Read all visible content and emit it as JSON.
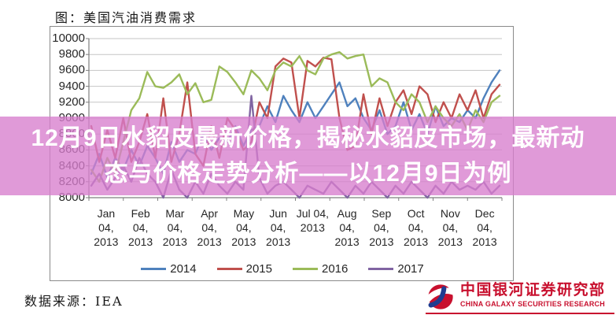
{
  "header": {
    "title": "图：美国汽油消费需求"
  },
  "overlay": {
    "line1": "12月9日水貂皮最新价格，揭秘水貂皮市场，最新动",
    "line2": "态与价格走势分析——以12月9日为例",
    "band_color": "rgba(215,125,205,0.78)",
    "text_color": "#ffffff"
  },
  "footer": {
    "source": "数据来源：IEA",
    "logo_cn": "中国银河证券研究部",
    "logo_en": "CHINA GALAXY SECURITIES RESEARCH",
    "logo_red": "#C8102E",
    "logo_blue": "#1F3C90"
  },
  "chart_data": {
    "type": "line",
    "title": "图：美国汽油消费需求",
    "xlabel": "",
    "ylabel": "",
    "ylim": [
      8000,
      10000
    ],
    "y_tick_step": 200,
    "y_ticks": [
      10000,
      9800,
      9600,
      9400,
      9200,
      9000,
      8800,
      8600,
      8400,
      8200,
      8000
    ],
    "grid": true,
    "legend_position": "bottom",
    "x_unit": "weekly",
    "x_tick_labels": [
      [
        "Jan",
        "04,",
        "2013"
      ],
      [
        "Feb",
        "04,",
        "2013"
      ],
      [
        "Mar",
        "04,",
        "2013"
      ],
      [
        "Apr",
        "04,",
        "2013"
      ],
      [
        "May",
        "04,",
        "2013"
      ],
      [
        "Jun",
        "04,",
        "2013"
      ],
      [
        "Jul 04,",
        "2013"
      ],
      [
        "Aug",
        "04,",
        "2013"
      ],
      [
        "Sep",
        "04,",
        "2013"
      ],
      [
        "Oct",
        "04,",
        "2013"
      ],
      [
        "Nov",
        "04,",
        "2013"
      ],
      [
        "Dec",
        "04,",
        "2013"
      ]
    ],
    "colors": {
      "grid": "#c6c6c6",
      "axis": "#7f7f7f"
    },
    "series": [
      {
        "name": "2014",
        "color": "#4F81BD",
        "values": [
          8300,
          8550,
          8250,
          8500,
          8350,
          8600,
          8400,
          8650,
          8500,
          8300,
          8700,
          8450,
          8600,
          8550,
          8800,
          8600,
          8750,
          8700,
          8900,
          8650,
          8850,
          8900,
          9150,
          8950,
          9280,
          9100,
          8950,
          9200,
          9000,
          9150,
          9300,
          9450,
          9150,
          9250,
          9000,
          8850,
          9100,
          8800,
          8900,
          9200,
          8850,
          9050,
          8800,
          9150,
          8900,
          9000,
          8950,
          9100,
          9000,
          9250,
          9450,
          9600
        ]
      },
      {
        "name": "2015",
        "color": "#C0504D",
        "values": [
          8900,
          8450,
          8850,
          8500,
          9000,
          8450,
          8700,
          9050,
          8500,
          9250,
          8450,
          8800,
          9450,
          8550,
          8400,
          8900,
          8500,
          9000,
          8850,
          8600,
          8700,
          9200,
          9000,
          9650,
          9750,
          9700,
          9000,
          9720,
          9650,
          9760,
          9740,
          9000,
          8600,
          8650,
          9300,
          8800,
          9250,
          8900,
          9200,
          9350,
          9050,
          9400,
          9300,
          8950,
          9200,
          9000,
          9300,
          9100,
          9350,
          9000,
          9300,
          9420
        ]
      },
      {
        "name": "2016",
        "color": "#9BBB59",
        "values": [
          8350,
          8200,
          8500,
          8300,
          8700,
          9100,
          9250,
          9580,
          9400,
          9380,
          9450,
          9550,
          9300,
          9440,
          9200,
          9230,
          9650,
          9580,
          9450,
          9300,
          9600,
          9500,
          9350,
          9600,
          9700,
          9650,
          9780,
          9600,
          9550,
          9750,
          9800,
          9830,
          9750,
          9780,
          9800,
          9400,
          9500,
          9450,
          9200,
          9100,
          9300,
          9200,
          8950,
          9150,
          9000,
          8900,
          9050,
          8850,
          9100,
          8950,
          9200,
          9280
        ]
      },
      {
        "name": "2017",
        "color": "#8064A2",
        "values": [
          8150,
          8300,
          8100,
          8250,
          8400,
          8200,
          8500,
          8300,
          8200,
          8000,
          8350,
          8100,
          8000,
          8200,
          8050,
          8300,
          8150,
          8050,
          8200,
          8100,
          9280,
          8250,
          8050,
          8150,
          8200,
          8100,
          8000,
          8150,
          8100,
          8050,
          8200,
          8100,
          8000,
          8150,
          8050,
          8200,
          8100,
          8000,
          8150,
          8050,
          8200,
          8100,
          8000,
          8150,
          8050,
          8200,
          8100,
          8150,
          8100,
          8200,
          8050,
          8150
        ]
      }
    ]
  }
}
